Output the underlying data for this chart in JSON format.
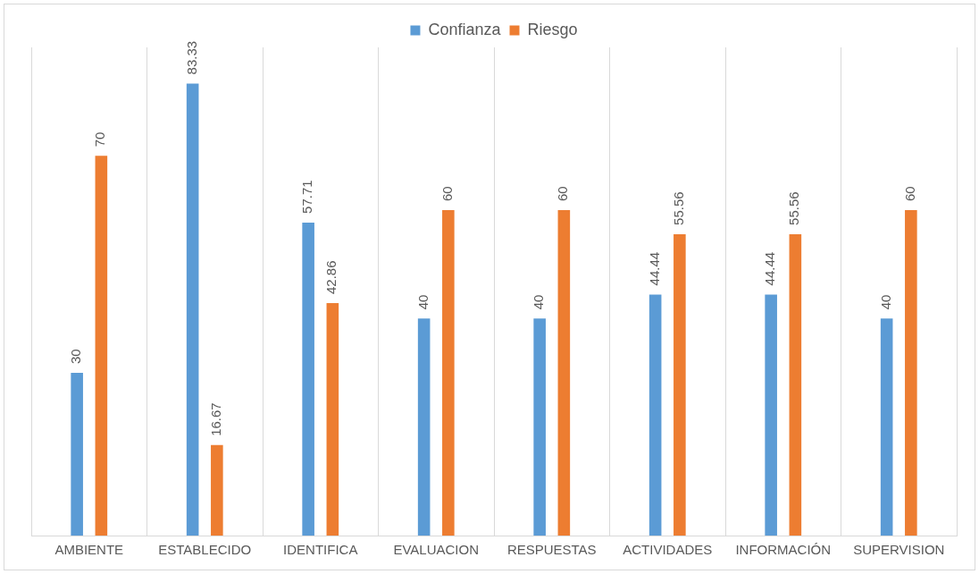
{
  "chart_data": {
    "type": "bar",
    "categories": [
      "AMBIENTE",
      "ESTABLECIDO",
      "IDENTIFICA",
      "EVALUACION",
      "RESPUESTAS",
      "ACTIVIDADES",
      "INFORMACIÓN",
      "SUPERVISION"
    ],
    "series": [
      {
        "name": "Confianza",
        "color": "#5b9bd5",
        "values": [
          30,
          83.33,
          57.71,
          40,
          40,
          44.44,
          44.44,
          40
        ]
      },
      {
        "name": "Riesgo",
        "color": "#ed7d31",
        "values": [
          70,
          16.67,
          42.86,
          60,
          60,
          55.56,
          55.56,
          60
        ]
      }
    ],
    "ylim": [
      0,
      90
    ],
    "data_labels": true,
    "grid": "x",
    "legend": "top",
    "tick_labels": "x"
  }
}
